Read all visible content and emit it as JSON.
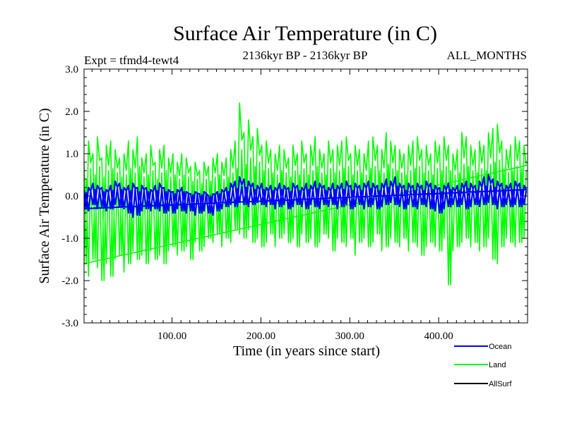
{
  "chart_data": {
    "type": "line",
    "title": "Surface Air Temperature (in C)",
    "subtitle_left": "Expt = tfmd4-tewt4",
    "subtitle_center": "2136kyr BP - 2136kyr BP",
    "subtitle_right": "ALL_MONTHS",
    "xlabel": "Time (in years since start)",
    "ylabel": "Surface Air Temperature (in C)",
    "xlim": [
      1,
      500
    ],
    "ylim": [
      -3.0,
      3.0
    ],
    "x_ticks": [
      100,
      200,
      300,
      400
    ],
    "x_tick_labels": [
      "100.00",
      "200.00",
      "300.00",
      "400.00"
    ],
    "y_ticks": [
      -3,
      -2,
      -1,
      0,
      1,
      2,
      3
    ],
    "y_tick_labels": [
      "-3.0",
      "-2.0",
      "-1.0",
      "0.0",
      "1.0",
      "2.0",
      "3.0"
    ],
    "grid": false,
    "legend_position": "bottom-right",
    "series": [
      {
        "name": "Land",
        "color": "#00ff00",
        "x_start": 1,
        "x_step": 5,
        "values_max": [
          0.8,
          1.3,
          1.0,
          1.4,
          0.9,
          1.2,
          1.3,
          1.1,
          0.9,
          1.0,
          1.3,
          1.1,
          1.4,
          0.9,
          1.0,
          1.2,
          0.8,
          1.1,
          1.2,
          0.9,
          1.0,
          0.8,
          1.0,
          0.9,
          0.7,
          0.8,
          0.6,
          0.8,
          0.7,
          0.9,
          1.0,
          0.8,
          0.9,
          1.1,
          1.3,
          2.2,
          1.5,
          1.8,
          1.4,
          1.6,
          1.2,
          1.3,
          1.1,
          1.0,
          1.2,
          1.1,
          0.9,
          1.2,
          1.0,
          1.3,
          1.0,
          1.2,
          1.4,
          1.1,
          1.0,
          1.3,
          1.1,
          1.2,
          1.3,
          1.4,
          1.0,
          1.2,
          1.1,
          1.0,
          1.3,
          1.4,
          1.2,
          1.1,
          1.5,
          1.3,
          1.2,
          1.1,
          1.0,
          1.2,
          1.3,
          1.4,
          1.1,
          1.2,
          1.0,
          1.3,
          1.2,
          1.4,
          1.2,
          1.0,
          1.1,
          1.5,
          1.4,
          1.2,
          1.1,
          1.3,
          1.2,
          1.5,
          1.6,
          1.7,
          1.3,
          1.1,
          1.2,
          1.4,
          1.3,
          1.2
        ],
        "values_min": [
          -1.6,
          -1.9,
          -1.5,
          -1.7,
          -2.0,
          -1.6,
          -1.9,
          -1.5,
          -1.4,
          -1.8,
          -1.6,
          -1.3,
          -1.5,
          -1.4,
          -1.6,
          -1.3,
          -1.5,
          -1.4,
          -1.6,
          -1.3,
          -1.2,
          -1.4,
          -1.3,
          -1.2,
          -1.5,
          -1.1,
          -1.3,
          -1.2,
          -1.0,
          -1.1,
          -0.9,
          -1.2,
          -1.0,
          -1.1,
          -0.8,
          -0.9,
          -1.0,
          -0.8,
          -1.1,
          -1.0,
          -1.2,
          -1.1,
          -0.9,
          -1.2,
          -1.0,
          -0.9,
          -1.1,
          -1.0,
          -1.2,
          -0.9,
          -1.1,
          -1.0,
          -1.2,
          -1.1,
          -0.9,
          -1.0,
          -1.3,
          -1.0,
          -1.1,
          -1.2,
          -1.0,
          -1.4,
          -1.1,
          -1.0,
          -1.2,
          -1.1,
          -0.9,
          -1.3,
          -1.2,
          -1.0,
          -1.1,
          -1.2,
          -1.0,
          -1.3,
          -1.1,
          -1.2,
          -1.4,
          -1.2,
          -1.1,
          -1.2,
          -1.3,
          -1.0,
          -2.1,
          -1.3,
          -1.2,
          -1.1,
          -1.0,
          -1.2,
          -1.1,
          -1.3,
          -1.2,
          -1.0,
          -1.5,
          -1.6,
          -1.2,
          -1.0,
          -1.1,
          -1.2,
          -1.1,
          -1.0
        ]
      },
      {
        "name": "Ocean",
        "color": "#0000ff",
        "x_start": 1,
        "x_step": 5,
        "values_max": [
          0.15,
          0.2,
          0.3,
          0.25,
          0.2,
          0.15,
          0.25,
          0.35,
          0.3,
          0.2,
          0.25,
          0.3,
          0.2,
          0.25,
          0.2,
          0.15,
          0.25,
          0.3,
          0.2,
          0.15,
          0.1,
          0.15,
          0.2,
          0.1,
          0.05,
          0.1,
          0.05,
          0.1,
          0.0,
          0.05,
          0.1,
          0.15,
          0.2,
          0.3,
          0.35,
          0.45,
          0.4,
          0.35,
          0.3,
          0.25,
          0.3,
          0.2,
          0.25,
          0.2,
          0.3,
          0.25,
          0.2,
          0.3,
          0.25,
          0.2,
          0.3,
          0.25,
          0.35,
          0.3,
          0.25,
          0.2,
          0.3,
          0.25,
          0.3,
          0.35,
          0.25,
          0.3,
          0.25,
          0.3,
          0.35,
          0.3,
          0.25,
          0.3,
          0.4,
          0.35,
          0.45,
          0.3,
          0.25,
          0.3,
          0.25,
          0.3,
          0.25,
          0.35,
          0.3,
          0.25,
          0.2,
          0.25,
          0.3,
          0.2,
          0.25,
          0.3,
          0.35,
          0.3,
          0.25,
          0.35,
          0.45,
          0.5,
          0.4,
          0.35,
          0.3,
          0.25,
          0.3,
          0.35,
          0.3,
          0.25
        ],
        "values_min": [
          -0.3,
          -0.35,
          -0.2,
          -0.3,
          -0.25,
          -0.35,
          -0.3,
          -0.2,
          -0.25,
          -0.3,
          -0.4,
          -0.5,
          -0.45,
          -0.35,
          -0.3,
          -0.35,
          -0.3,
          -0.35,
          -0.4,
          -0.35,
          -0.4,
          -0.3,
          -0.35,
          -0.4,
          -0.35,
          -0.45,
          -0.4,
          -0.35,
          -0.4,
          -0.45,
          -0.35,
          -0.3,
          -0.25,
          -0.2,
          -0.25,
          -0.15,
          -0.2,
          -0.25,
          -0.2,
          -0.15,
          -0.2,
          -0.25,
          -0.2,
          -0.3,
          -0.25,
          -0.2,
          -0.3,
          -0.25,
          -0.2,
          -0.25,
          -0.3,
          -0.2,
          -0.25,
          -0.3,
          -0.2,
          -0.25,
          -0.2,
          -0.3,
          -0.25,
          -0.2,
          -0.3,
          -0.25,
          -0.2,
          -0.3,
          -0.25,
          -0.2,
          -0.3,
          -0.25,
          -0.2,
          -0.15,
          -0.2,
          -0.25,
          -0.3,
          -0.2,
          -0.25,
          -0.3,
          -0.2,
          -0.25,
          -0.3,
          -0.35,
          -0.4,
          -0.3,
          -0.25,
          -0.2,
          -0.25,
          -0.2,
          -0.3,
          -0.25,
          -0.2,
          -0.25,
          -0.2,
          -0.15,
          -0.2,
          -0.3,
          -0.25,
          -0.2,
          -0.25,
          -0.2,
          -0.25,
          -0.2
        ]
      },
      {
        "name": "AllSurf",
        "color": "#000000"
      }
    ]
  }
}
